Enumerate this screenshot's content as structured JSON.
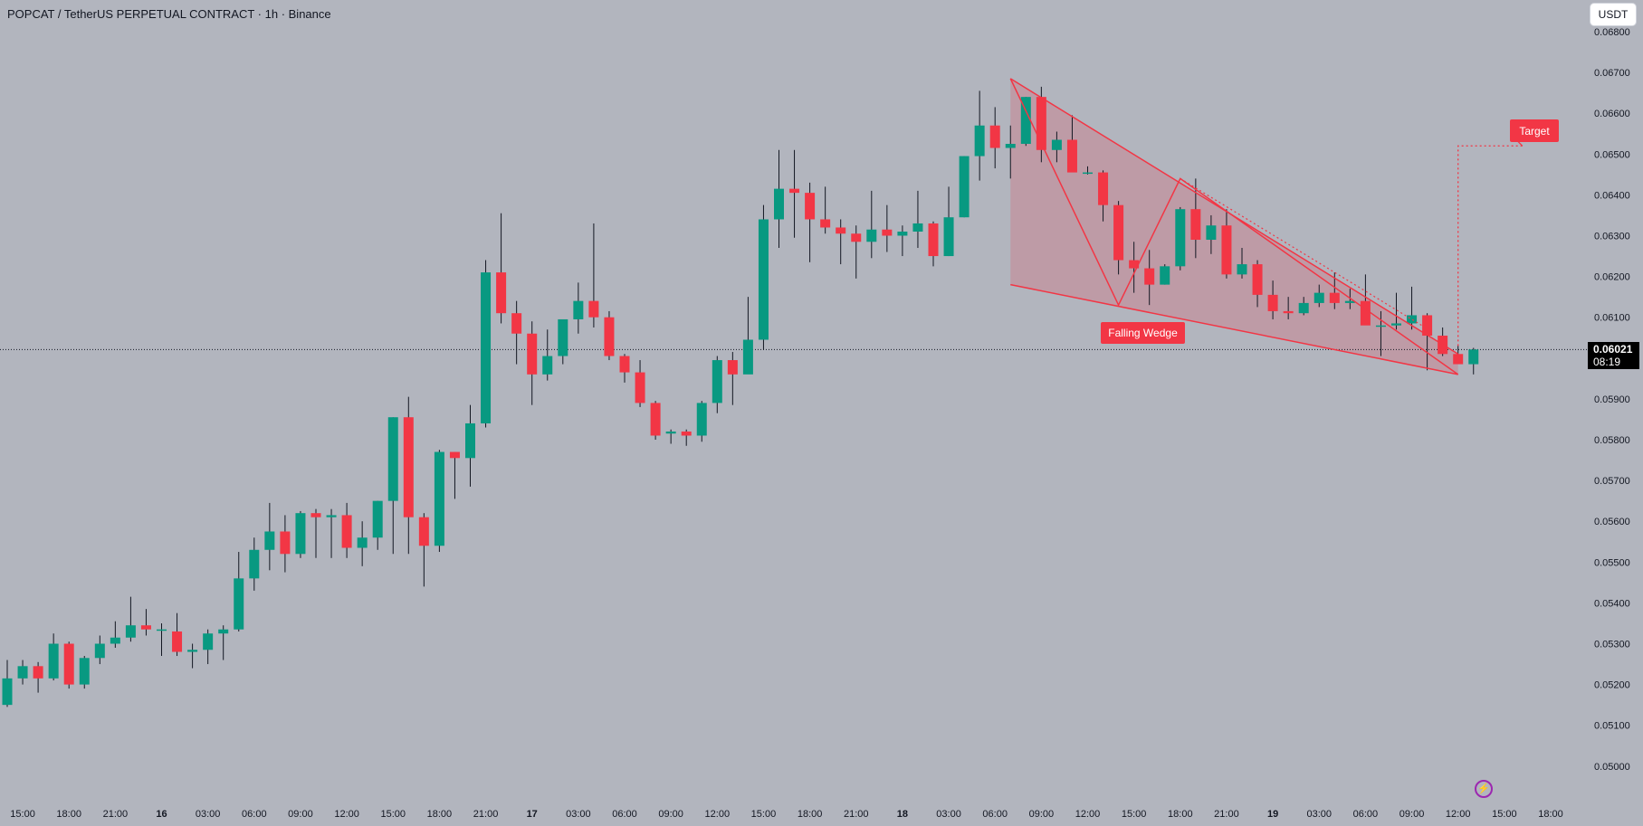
{
  "header": {
    "title": "POPCAT / TetherUS PERPETUAL CONTRACT · 1h · Binance",
    "currency": "USDT"
  },
  "price_tag": {
    "price": "0.06021",
    "countdown": "08:19"
  },
  "annotations": {
    "falling_wedge": "Falling Wedge",
    "target": "Target"
  },
  "icons": {
    "bolt": "lightning-bolt-icon"
  },
  "colors": {
    "background": "#b2b5be",
    "up": "#089981",
    "down": "#f23645",
    "wedge_line": "#f23645",
    "wedge_fill": "#f2364533",
    "text": "#131722"
  },
  "chart_data": {
    "type": "candlestick",
    "timeframe": "1h",
    "ylim": [
      0.0495,
      0.0682
    ],
    "y_ticks": [
      "0.06800",
      "0.06700",
      "0.06600",
      "0.06500",
      "0.06400",
      "0.06300",
      "0.06200",
      "0.06100",
      "0.06000",
      "0.05900",
      "0.05800",
      "0.05700",
      "0.05600",
      "0.05500",
      "0.05400",
      "0.05300",
      "0.05200",
      "0.05100",
      "0.05000"
    ],
    "x_ticks": [
      "15:00",
      "18:00",
      "21:00",
      "16",
      "03:00",
      "06:00",
      "09:00",
      "12:00",
      "15:00",
      "18:00",
      "21:00",
      "17",
      "03:00",
      "06:00",
      "09:00",
      "12:00",
      "15:00",
      "18:00",
      "21:00",
      "18",
      "03:00",
      "06:00",
      "09:00",
      "12:00",
      "15:00",
      "18:00",
      "21:00",
      "19",
      "03:00",
      "06:00",
      "09:00",
      "12:00",
      "15:00",
      "18:00"
    ],
    "x_start": "15 14:00",
    "candles": [
      [
        0.0515,
        0.0526,
        0.05145,
        0.05215
      ],
      [
        0.05215,
        0.0526,
        0.052,
        0.05245
      ],
      [
        0.05245,
        0.05255,
        0.0518,
        0.05215
      ],
      [
        0.05215,
        0.05325,
        0.0521,
        0.053
      ],
      [
        0.053,
        0.05305,
        0.0519,
        0.052
      ],
      [
        0.052,
        0.0527,
        0.0519,
        0.05265
      ],
      [
        0.05265,
        0.0532,
        0.0525,
        0.053
      ],
      [
        0.053,
        0.05355,
        0.0529,
        0.05315
      ],
      [
        0.05315,
        0.05415,
        0.05305,
        0.05345
      ],
      [
        0.05345,
        0.05385,
        0.0532,
        0.05335
      ],
      [
        0.05335,
        0.0535,
        0.0527,
        0.05335
      ],
      [
        0.0533,
        0.05375,
        0.0527,
        0.0528
      ],
      [
        0.0528,
        0.053,
        0.0524,
        0.05285
      ],
      [
        0.05285,
        0.05335,
        0.0525,
        0.05325
      ],
      [
        0.05325,
        0.05345,
        0.0526,
        0.05335
      ],
      [
        0.05335,
        0.05525,
        0.0533,
        0.0546
      ],
      [
        0.0546,
        0.0556,
        0.0543,
        0.0553
      ],
      [
        0.0553,
        0.05645,
        0.0548,
        0.05575
      ],
      [
        0.05575,
        0.05615,
        0.05475,
        0.0552
      ],
      [
        0.0552,
        0.05625,
        0.0551,
        0.0562
      ],
      [
        0.0562,
        0.0563,
        0.0551,
        0.0561
      ],
      [
        0.0561,
        0.0563,
        0.0551,
        0.05615
      ],
      [
        0.05615,
        0.05645,
        0.0551,
        0.05535
      ],
      [
        0.05535,
        0.056,
        0.0549,
        0.0556
      ],
      [
        0.0556,
        0.0565,
        0.0553,
        0.0565
      ],
      [
        0.0565,
        0.05855,
        0.0552,
        0.05855
      ],
      [
        0.05855,
        0.05905,
        0.0552,
        0.0561
      ],
      [
        0.0561,
        0.0562,
        0.0544,
        0.0554
      ],
      [
        0.0554,
        0.05775,
        0.05525,
        0.0577
      ],
      [
        0.0577,
        0.0577,
        0.05655,
        0.05755
      ],
      [
        0.05755,
        0.05885,
        0.05685,
        0.0584
      ],
      [
        0.0584,
        0.0624,
        0.0583,
        0.0621
      ],
      [
        0.0621,
        0.06355,
        0.06085,
        0.0611
      ],
      [
        0.0611,
        0.0614,
        0.05985,
        0.0606
      ],
      [
        0.0606,
        0.0609,
        0.05885,
        0.0596
      ],
      [
        0.0596,
        0.0607,
        0.05945,
        0.06005
      ],
      [
        0.06005,
        0.06085,
        0.05985,
        0.06095
      ],
      [
        0.06095,
        0.06185,
        0.0606,
        0.0614
      ],
      [
        0.0614,
        0.0633,
        0.06075,
        0.061
      ],
      [
        0.061,
        0.06115,
        0.05995,
        0.06005
      ],
      [
        0.06005,
        0.0601,
        0.0594,
        0.05965
      ],
      [
        0.05965,
        0.05995,
        0.0588,
        0.0589
      ],
      [
        0.0589,
        0.05895,
        0.058,
        0.0581
      ],
      [
        0.05815,
        0.05825,
        0.0579,
        0.0582
      ],
      [
        0.0582,
        0.05825,
        0.05785,
        0.0581
      ],
      [
        0.0581,
        0.05895,
        0.05795,
        0.0589
      ],
      [
        0.0589,
        0.06005,
        0.05865,
        0.05995
      ],
      [
        0.05995,
        0.06015,
        0.05885,
        0.0596
      ],
      [
        0.0596,
        0.0615,
        0.05965,
        0.06045
      ],
      [
        0.06045,
        0.06375,
        0.0602,
        0.0634
      ],
      [
        0.0634,
        0.0651,
        0.0627,
        0.06415
      ],
      [
        0.06415,
        0.0651,
        0.06295,
        0.06405
      ],
      [
        0.06405,
        0.0643,
        0.06235,
        0.0634
      ],
      [
        0.0634,
        0.0642,
        0.06305,
        0.0632
      ],
      [
        0.0632,
        0.0634,
        0.0623,
        0.06305
      ],
      [
        0.06305,
        0.06325,
        0.06195,
        0.06285
      ],
      [
        0.06285,
        0.0641,
        0.06245,
        0.06315
      ],
      [
        0.06315,
        0.06375,
        0.0626,
        0.063
      ],
      [
        0.063,
        0.06325,
        0.0625,
        0.0631
      ],
      [
        0.0631,
        0.0641,
        0.0627,
        0.0633
      ],
      [
        0.0633,
        0.06335,
        0.06225,
        0.0625
      ],
      [
        0.0625,
        0.0642,
        0.0625,
        0.06345
      ],
      [
        0.06345,
        0.06495,
        0.06345,
        0.06495
      ],
      [
        0.06495,
        0.06655,
        0.06435,
        0.0657
      ],
      [
        0.0657,
        0.06615,
        0.06465,
        0.06515
      ],
      [
        0.06515,
        0.0657,
        0.0644,
        0.06525
      ],
      [
        0.06525,
        0.0664,
        0.0652,
        0.0664
      ],
      [
        0.0664,
        0.06665,
        0.0648,
        0.0651
      ],
      [
        0.0651,
        0.06555,
        0.0648,
        0.06535
      ],
      [
        0.06535,
        0.06595,
        0.0647,
        0.06455
      ],
      [
        0.06455,
        0.0647,
        0.0645,
        0.06455
      ],
      [
        0.06455,
        0.0646,
        0.06335,
        0.06375
      ],
      [
        0.06375,
        0.06385,
        0.06205,
        0.0624
      ],
      [
        0.0624,
        0.06285,
        0.0616,
        0.0622
      ],
      [
        0.0622,
        0.06265,
        0.0613,
        0.0618
      ],
      [
        0.0618,
        0.0623,
        0.0618,
        0.06225
      ],
      [
        0.06225,
        0.0637,
        0.06215,
        0.06365
      ],
      [
        0.06365,
        0.0644,
        0.06245,
        0.0629
      ],
      [
        0.0629,
        0.0635,
        0.06255,
        0.06325
      ],
      [
        0.06325,
        0.06365,
        0.06195,
        0.06205
      ],
      [
        0.06205,
        0.0627,
        0.06195,
        0.0623
      ],
      [
        0.0623,
        0.0624,
        0.06125,
        0.06155
      ],
      [
        0.06155,
        0.0619,
        0.06095,
        0.06115
      ],
      [
        0.06115,
        0.0615,
        0.06095,
        0.0611
      ],
      [
        0.0611,
        0.0615,
        0.06105,
        0.06135
      ],
      [
        0.06135,
        0.0618,
        0.06125,
        0.0616
      ],
      [
        0.0616,
        0.0621,
        0.0612,
        0.06135
      ],
      [
        0.06135,
        0.0617,
        0.0612,
        0.0614
      ],
      [
        0.0614,
        0.06205,
        0.06085,
        0.0608
      ],
      [
        0.0608,
        0.06115,
        0.06005,
        0.0608
      ],
      [
        0.0608,
        0.0616,
        0.0607,
        0.06085
      ],
      [
        0.06085,
        0.06175,
        0.0607,
        0.06105
      ],
      [
        0.06105,
        0.0611,
        0.0597,
        0.06055
      ],
      [
        0.06055,
        0.06075,
        0.06005,
        0.0601
      ],
      [
        0.0601,
        0.0603,
        0.0599,
        0.05985
      ],
      [
        0.05985,
        0.06025,
        0.0596,
        0.06021
      ]
    ],
    "last_price": 0.06021,
    "wedge": {
      "upper": [
        [
          "18 07:00",
          0.06685
        ],
        [
          "19 12:00",
          0.0601
        ]
      ],
      "lower": [
        [
          "18 07:00",
          0.0618
        ],
        [
          "19 12:00",
          0.0596
        ]
      ],
      "zigzag": [
        [
          "18 07:00",
          0.06685
        ],
        [
          "18 14:00",
          0.0613
        ],
        [
          "18 18:00",
          0.0644
        ],
        [
          "19 12:00",
          0.0596
        ]
      ]
    },
    "target": {
      "price": 0.0652,
      "from_time": "19 12:00",
      "to_time": "19 14:00"
    }
  }
}
